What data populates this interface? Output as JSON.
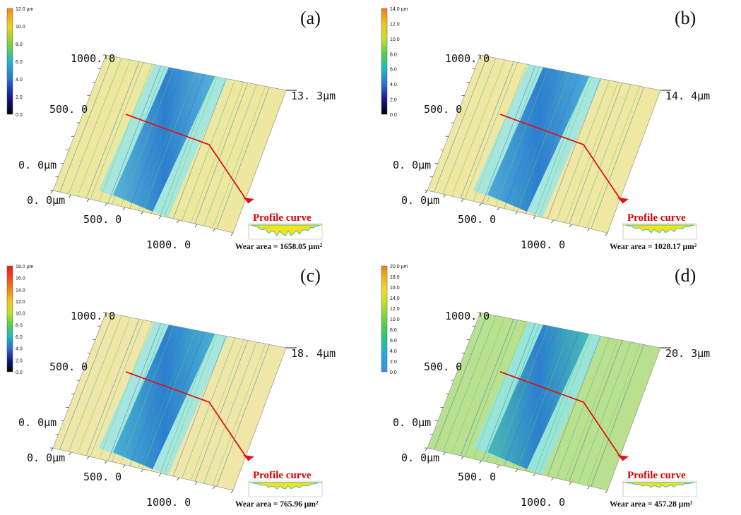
{
  "panels": [
    {
      "label": "(a)",
      "colorbar": {
        "ticks": [
          "12.0 µm",
          "10.0",
          "8.0",
          "6.0",
          "4.0",
          "2.0",
          "0.0"
        ],
        "gradient": [
          "#f08a1c",
          "#f2d21e",
          "#7dd33a",
          "#1fb8c8",
          "#2f6fd6",
          "#141a8c",
          "#000000"
        ]
      },
      "axis": {
        "y_top": "1000. 0",
        "y_mid": "500. 0",
        "origin": "0. 0µm",
        "x_origin": "0. 0µm",
        "x_mid": "500. 0",
        "x_end": "1000. 0",
        "z_max": "13. 3µm"
      },
      "profile_label": "Profile curve",
      "wear_area": "Wear area = 1658.05 µm²",
      "surface_color": "#eee7a0",
      "track_color": "#4aa9d8"
    },
    {
      "label": "(b)",
      "colorbar": {
        "ticks": [
          "14.0 µm",
          "12.0",
          "10.0",
          "8.0",
          "6.0",
          "4.0",
          "2.0",
          "0.0"
        ],
        "gradient": [
          "#f07a1c",
          "#f2c41e",
          "#c6e02a",
          "#4fd04a",
          "#1fb8c8",
          "#2f6fd6",
          "#141a8c",
          "#000000"
        ]
      },
      "axis": {
        "y_top": "1000. 0",
        "y_mid": "500. 0",
        "origin": "0. 0µm",
        "x_origin": "0. 0µm",
        "x_mid": "500. 0",
        "x_end": "1000. 0",
        "z_max": "14. 4µm"
      },
      "profile_label": "Profile curve",
      "wear_area": "Wear area = 1028.17 µm²",
      "surface_color": "#efe7a2",
      "track_color": "#3f9fd6"
    },
    {
      "label": "(c)",
      "colorbar": {
        "ticks": [
          "18.0 µm",
          "16.0",
          "14.0",
          "12.0",
          "10.0",
          "8.0",
          "6.0",
          "4.0",
          "2.0",
          "0.0"
        ],
        "gradient": [
          "#e81c1c",
          "#ee4a1c",
          "#f0861c",
          "#f2c41e",
          "#c6e02a",
          "#4fd04a",
          "#1fb8c8",
          "#2f6fd6",
          "#141a8c",
          "#000000"
        ]
      },
      "axis": {
        "y_top": "1000. 0",
        "y_mid": "500. 0",
        "origin": "0. 0µm",
        "x_origin": "0. 0µm",
        "x_mid": "500. 0",
        "x_end": "1000. 0",
        "z_max": "18. 4µm"
      },
      "profile_label": "Profile curve",
      "wear_area": "Wear area = 765.96 µm²",
      "surface_color": "#f0e6a8",
      "track_color": "#3aa6d0"
    },
    {
      "label": "(d)",
      "colorbar": {
        "ticks": [
          "20.0 µm",
          "18.0",
          "16.0",
          "14.0",
          "12.0",
          "10.0",
          "8.0",
          "6.0",
          "4.0",
          "2.0",
          "0.0"
        ],
        "gradient": [
          "#f07a1c",
          "#f2b21e",
          "#f2dc1e",
          "#c6e02a",
          "#8fd83a",
          "#4fd04a",
          "#2fc47a",
          "#1fb8c8",
          "#2fa0e0",
          "#3a8be8"
        ]
      },
      "axis": {
        "y_top": "1000. 0",
        "y_mid": "500. 0",
        "origin": "0. 0µm",
        "x_origin": "0. 0µm",
        "x_mid": "500. 0",
        "x_end": "1000. 0",
        "z_max": "20. 3µm"
      },
      "profile_label": "Profile curve",
      "wear_area": "Wear area = 457.28 µm²",
      "surface_color": "#b9e08e",
      "track_color": "#3db3b0"
    }
  ]
}
